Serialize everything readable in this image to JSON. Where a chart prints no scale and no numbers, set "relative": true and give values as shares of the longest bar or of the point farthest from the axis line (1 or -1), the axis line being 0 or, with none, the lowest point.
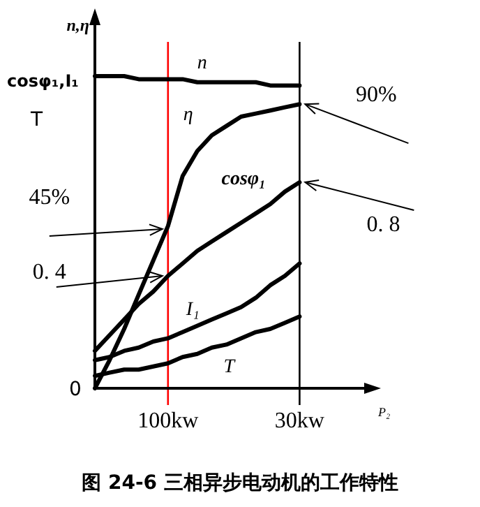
{
  "chart_data": {
    "type": "line",
    "relative": true,
    "ylabel": "n,η",
    "xlabel": "P₂",
    "categories": [
      null,
      null,
      null,
      null,
      null,
      "100kw",
      null,
      null,
      null,
      null,
      null,
      null,
      null,
      null,
      "30kw"
    ],
    "series": [
      {
        "name": "n",
        "color": "#000000",
        "values": [
          1,
          1,
          1,
          0.99,
          0.99,
          0.99,
          0.99,
          0.98,
          0.98,
          0.98,
          0.98,
          0.98,
          0.97,
          0.97,
          0.97
        ]
      },
      {
        "name": "η",
        "color": "#000000",
        "values": [
          0,
          0.09,
          0.19,
          0.3,
          0.41,
          0.52,
          0.68,
          0.76,
          0.81,
          0.84,
          0.87,
          0.88,
          0.89,
          0.9,
          0.91
        ]
      },
      {
        "name": "cosφ₁",
        "color": "#000000",
        "values": [
          0.12,
          0.17,
          0.22,
          0.27,
          0.31,
          0.36,
          0.4,
          0.44,
          0.47,
          0.5,
          0.53,
          0.56,
          0.59,
          0.63,
          0.66
        ]
      },
      {
        "name": "I₁",
        "color": "#000000",
        "values": [
          0.09,
          0.1,
          0.12,
          0.13,
          0.15,
          0.16,
          0.18,
          0.2,
          0.22,
          0.24,
          0.26,
          0.29,
          0.33,
          0.36,
          0.4
        ]
      },
      {
        "name": "T",
        "color": "#000000",
        "values": [
          0.04,
          0.05,
          0.06,
          0.06,
          0.07,
          0.08,
          0.1,
          0.11,
          0.13,
          0.14,
          0.16,
          0.18,
          0.19,
          0.21,
          0.23
        ]
      }
    ],
    "ref_lines": [
      {
        "axis": "x",
        "value": "100kw",
        "color": "#ff0000"
      },
      {
        "axis": "x",
        "value": "30kw",
        "color": "#000000"
      }
    ],
    "annotations": [
      {
        "text": "90%",
        "x": "30kw",
        "y": 0.91
      },
      {
        "text": "0. 8",
        "x": "30kw",
        "y": 0.66
      },
      {
        "text": "45%",
        "x": "100kw",
        "y": 0.51
      },
      {
        "text": "0. 4",
        "x": "100kw",
        "y": 0.36
      },
      "cosφ₁,I₁",
      "T",
      "0",
      "图 24-6  三相异步电动机的工作特性"
    ]
  }
}
